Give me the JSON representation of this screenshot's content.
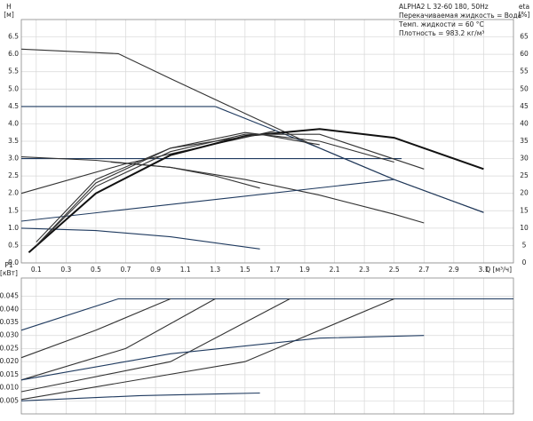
{
  "chart_data": [
    {
      "type": "line",
      "info": [
        "ALPHA2 L 32-60 180, 50Hz",
        "Перекачиваемая жидкость = Вода",
        "Темп. жидкости = 60 °C",
        "Плотность = 983.2 кг/м³"
      ],
      "y_label": [
        "H",
        "[м]"
      ],
      "y2_label": [
        "eta",
        "[%]"
      ],
      "x_label": "Q [м³/ч]",
      "xlim": [
        0,
        3.3
      ],
      "xticks": [
        0.1,
        0.3,
        0.5,
        0.7,
        0.9,
        1.1,
        1.3,
        1.5,
        1.7,
        1.9,
        2.1,
        2.3,
        2.5,
        2.7,
        2.9,
        3.1
      ],
      "ylim": [
        0,
        7
      ],
      "yticks": [
        {
          "value": 0,
          "label": "0.0"
        },
        0.5,
        {
          "value": 1,
          "label": "1.0"
        },
        1.5,
        {
          "value": 2,
          "label": "2.0"
        },
        2.5,
        {
          "value": 3,
          "label": "3.0"
        },
        3.5,
        {
          "value": 4,
          "label": "4.0"
        },
        4.5,
        {
          "value": 5,
          "label": "5.0"
        },
        5.5,
        {
          "value": 6,
          "label": "6.0"
        },
        6.5
      ],
      "y2lim": [
        0,
        70
      ],
      "y2ticks": [
        0,
        5,
        10,
        15,
        20,
        25,
        30,
        35,
        40,
        45,
        50,
        55,
        60,
        65
      ],
      "grid": true,
      "series": [
        {
          "color": "#333333",
          "x": [
            0,
            0.65,
            1.0,
            1.5,
            2.0,
            2.5,
            3.1
          ],
          "values": [
            6.15,
            6.02,
            5.3,
            4.3,
            3.3,
            2.4,
            1.45
          ]
        },
        {
          "color": "#1f3a5f",
          "x": [
            0,
            1.3
          ],
          "values": [
            4.5,
            4.5
          ]
        },
        {
          "color": "#1f3a5f",
          "x": [
            1.3,
            2.0,
            2.5,
            3.1
          ],
          "values": [
            4.5,
            3.3,
            2.4,
            1.45
          ]
        },
        {
          "color": "#1f3a5f",
          "x": [
            0,
            2.55
          ],
          "values": [
            3.0,
            3.0
          ]
        },
        {
          "color": "#333333",
          "x": [
            0,
            0.5,
            1.0,
            1.5,
            2.0,
            2.5,
            2.7
          ],
          "values": [
            3.05,
            2.95,
            2.75,
            2.4,
            1.95,
            1.4,
            1.15
          ]
        },
        {
          "color": "#1f3a5f",
          "x": [
            0,
            2.5
          ],
          "values": [
            1.2,
            2.4
          ]
        },
        {
          "color": "#333333",
          "x": [
            0,
            0.7,
            1.7
          ],
          "values": [
            2.0,
            2.85,
            3.8
          ]
        },
        {
          "color": "#333333",
          "x": [
            0.6,
            1.0,
            1.3,
            1.6
          ],
          "values": [
            2.9,
            2.75,
            2.5,
            2.15
          ]
        },
        {
          "color": "#1f3a5f",
          "x": [
            0,
            0.5,
            1.0,
            1.6
          ],
          "values": [
            1.0,
            0.93,
            0.75,
            0.4
          ]
        },
        {
          "color": "#111111",
          "axis": "y2",
          "x": [
            0.05,
            0.5,
            1.0,
            1.5,
            2.0,
            2.5,
            3.1
          ],
          "values": [
            3,
            20,
            31,
            36.5,
            38.5,
            36,
            27
          ]
        },
        {
          "color": "#333333",
          "axis": "y2",
          "x": [
            0.1,
            0.5,
            1.0,
            1.5,
            2.0,
            2.7
          ],
          "values": [
            5,
            22,
            32,
            37,
            37,
            27
          ]
        },
        {
          "color": "#333333",
          "axis": "y2",
          "x": [
            0.1,
            0.5,
            1.0,
            1.5,
            2.0,
            2.5
          ],
          "values": [
            5,
            23,
            33,
            37.5,
            35,
            29
          ]
        },
        {
          "color": "#333333",
          "axis": "y2",
          "x": [
            0.1,
            0.5,
            1.0,
            1.6,
            2.0
          ],
          "values": [
            6,
            24,
            33,
            37,
            34
          ]
        }
      ]
    },
    {
      "type": "line",
      "y_label": [
        "P1",
        "[кВт]"
      ],
      "xlim": [
        0,
        3.3
      ],
      "xticks": [
        0.1,
        0.3,
        0.5,
        0.7,
        0.9,
        1.1,
        1.3,
        1.5,
        1.7,
        1.9,
        2.1,
        2.3,
        2.5,
        2.7,
        2.9,
        3.1
      ],
      "ylim": [
        0,
        0.052
      ],
      "yticks": [
        0.005,
        {
          "value": 0.01,
          "label": "0.010"
        },
        0.015,
        {
          "value": 0.02,
          "label": "0.020"
        },
        0.025,
        {
          "value": 0.03,
          "label": "0.030"
        },
        0.035,
        {
          "value": 0.04,
          "label": "0.040"
        },
        0.045
      ],
      "grid": true,
      "series": [
        {
          "color": "#1f3a5f",
          "x": [
            0,
            0.65,
            3.3
          ],
          "values": [
            0.032,
            0.044,
            0.044
          ]
        },
        {
          "color": "#333333",
          "x": [
            0,
            0.5,
            1.0
          ],
          "values": [
            0.0215,
            0.032,
            0.044
          ]
        },
        {
          "color": "#333333",
          "x": [
            0,
            0.7,
            1.3
          ],
          "values": [
            0.013,
            0.025,
            0.044
          ]
        },
        {
          "color": "#333333",
          "x": [
            0,
            1.0,
            1.8
          ],
          "values": [
            0.0085,
            0.02,
            0.044
          ]
        },
        {
          "color": "#333333",
          "x": [
            0,
            1.5,
            2.5
          ],
          "values": [
            0.0055,
            0.02,
            0.044
          ]
        },
        {
          "color": "#1f3a5f",
          "x": [
            0,
            1.0,
            2.0,
            2.7
          ],
          "values": [
            0.013,
            0.023,
            0.029,
            0.03
          ]
        },
        {
          "color": "#1f3a5f",
          "x": [
            0,
            0.8,
            1.6
          ],
          "values": [
            0.005,
            0.007,
            0.008
          ]
        }
      ]
    }
  ]
}
